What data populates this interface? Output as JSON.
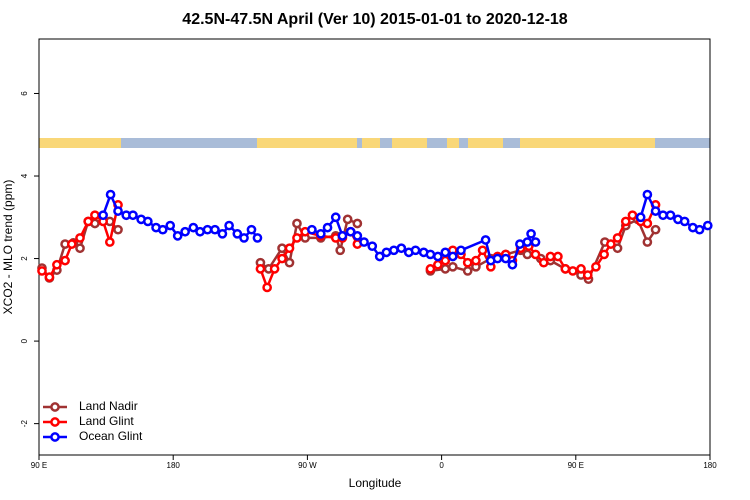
{
  "chart_data": {
    "type": "line",
    "title": "42.5N-47.5N April (Ver 10)   2015-01-01 to 2020-12-18",
    "x_label": "Longitude",
    "y_label": "XCO2 - MLO trend (ppm)",
    "xlim": [
      90,
      540
    ],
    "ylim": [
      -2.76,
      7.32
    ],
    "xticks": [
      {
        "value": 90,
        "label": "90 E"
      },
      180,
      {
        "value": 270,
        "label": "90 W"
      },
      {
        "value": 360,
        "label": "0"
      },
      {
        "value": 450,
        "label": "90 E"
      },
      {
        "value": 540,
        "label": "180"
      }
    ],
    "yticks": [
      -2,
      0,
      2,
      4,
      6
    ],
    "legend": "bottom-left",
    "series": [
      {
        "name": "Land Nadir",
        "color": "#a03232",
        "x": [
          92,
          97,
          102,
          107.5,
          113,
          117.5,
          123,
          127.5,
          137.5,
          143,
          null,
          238.5,
          244,
          253,
          258,
          263,
          268.5,
          279,
          289,
          292,
          297,
          303.5,
          null,
          352.5,
          362.5,
          367.5,
          377.5,
          383,
          393,
          403,
          413,
          417.5,
          426.5,
          433,
          443,
          453.5,
          458.5,
          469.5,
          478,
          483.5,
          491.5,
          498,
          503.5
        ],
        "values": [
          1.77,
          1.53,
          1.72,
          2.35,
          2.38,
          2.25,
          2.9,
          2.85,
          2.9,
          2.7,
          null,
          1.9,
          1.75,
          2.25,
          1.9,
          2.85,
          2.5,
          2.5,
          2.55,
          2.2,
          2.95,
          2.85,
          null,
          1.7,
          1.75,
          1.8,
          1.7,
          1.8,
          2.0,
          2.1,
          2.2,
          2.1,
          2.0,
          1.95,
          1.75,
          1.6,
          1.5,
          2.4,
          2.25,
          2.8,
          2.95,
          2.4,
          2.7
        ]
      },
      {
        "name": "Land Glint",
        "color": "#ff0000",
        "x": [
          92,
          97,
          102,
          107.5,
          112,
          117.5,
          123,
          127.5,
          133,
          137.5,
          143,
          null,
          238.5,
          243,
          248,
          253,
          258,
          263,
          268.5,
          279,
          289,
          293.5,
          299,
          303.5,
          null,
          352.5,
          357.5,
          362.5,
          367.5,
          373,
          377.5,
          383,
          387.5,
          393,
          397.5,
          403,
          407.5,
          413,
          418.5,
          423,
          428.5,
          433,
          438,
          443,
          448,
          453.5,
          458,
          463.5,
          469,
          473.5,
          478,
          483.5,
          488,
          493.5,
          498,
          503.5
        ],
        "values": [
          1.7,
          1.55,
          1.85,
          1.95,
          2.35,
          2.5,
          2.9,
          3.05,
          2.9,
          2.4,
          3.3,
          null,
          1.75,
          1.3,
          1.75,
          2.0,
          2.25,
          2.5,
          2.65,
          2.55,
          2.5,
          2.5,
          2.65,
          2.35,
          null,
          1.75,
          1.85,
          1.95,
          2.2,
          2.1,
          1.9,
          1.95,
          2.2,
          1.8,
          2.05,
          2.1,
          1.95,
          2.25,
          2.3,
          2.1,
          1.9,
          2.05,
          2.05,
          1.75,
          1.7,
          1.75,
          1.6,
          1.8,
          2.1,
          2.35,
          2.5,
          2.9,
          3.05,
          2.9,
          2.85,
          3.3
        ]
      },
      {
        "name": "Ocean Glint",
        "color": "#0000ff",
        "x": [
          133,
          138,
          143,
          148.5,
          153,
          158.5,
          163,
          168.5,
          173,
          178,
          183,
          188,
          193.5,
          198,
          203,
          208,
          213,
          217.5,
          223,
          227.5,
          232.5,
          236.5,
          null,
          273,
          279,
          283.5,
          289,
          293.5,
          299,
          303.5,
          308,
          313.5,
          318.5,
          323,
          328,
          333,
          338,
          342.5,
          348,
          352.5,
          357.5,
          362.5,
          367.5,
          373,
          389.5,
          393,
          397.5,
          403,
          407.5,
          412.5,
          417.5,
          420,
          423,
          null,
          493.5,
          498,
          503.5,
          508.5,
          513.5,
          518.5,
          523,
          528.5,
          533,
          538.5
        ],
        "values": [
          3.05,
          3.55,
          3.15,
          3.05,
          3.05,
          2.95,
          2.9,
          2.75,
          2.7,
          2.8,
          2.55,
          2.65,
          2.75,
          2.65,
          2.7,
          2.7,
          2.6,
          2.8,
          2.6,
          2.5,
          2.7,
          2.5,
          null,
          2.7,
          2.6,
          2.75,
          3.0,
          2.55,
          2.65,
          2.55,
          2.4,
          2.3,
          2.05,
          2.15,
          2.2,
          2.25,
          2.15,
          2.2,
          2.15,
          2.1,
          2.05,
          2.15,
          2.05,
          2.2,
          2.45,
          1.95,
          2.0,
          2.0,
          1.85,
          2.35,
          2.4,
          2.6,
          2.4,
          null,
          3.0,
          3.55,
          3.15,
          3.05,
          3.05,
          2.95,
          2.9,
          2.75,
          2.7,
          2.8
        ]
      }
    ]
  }
}
